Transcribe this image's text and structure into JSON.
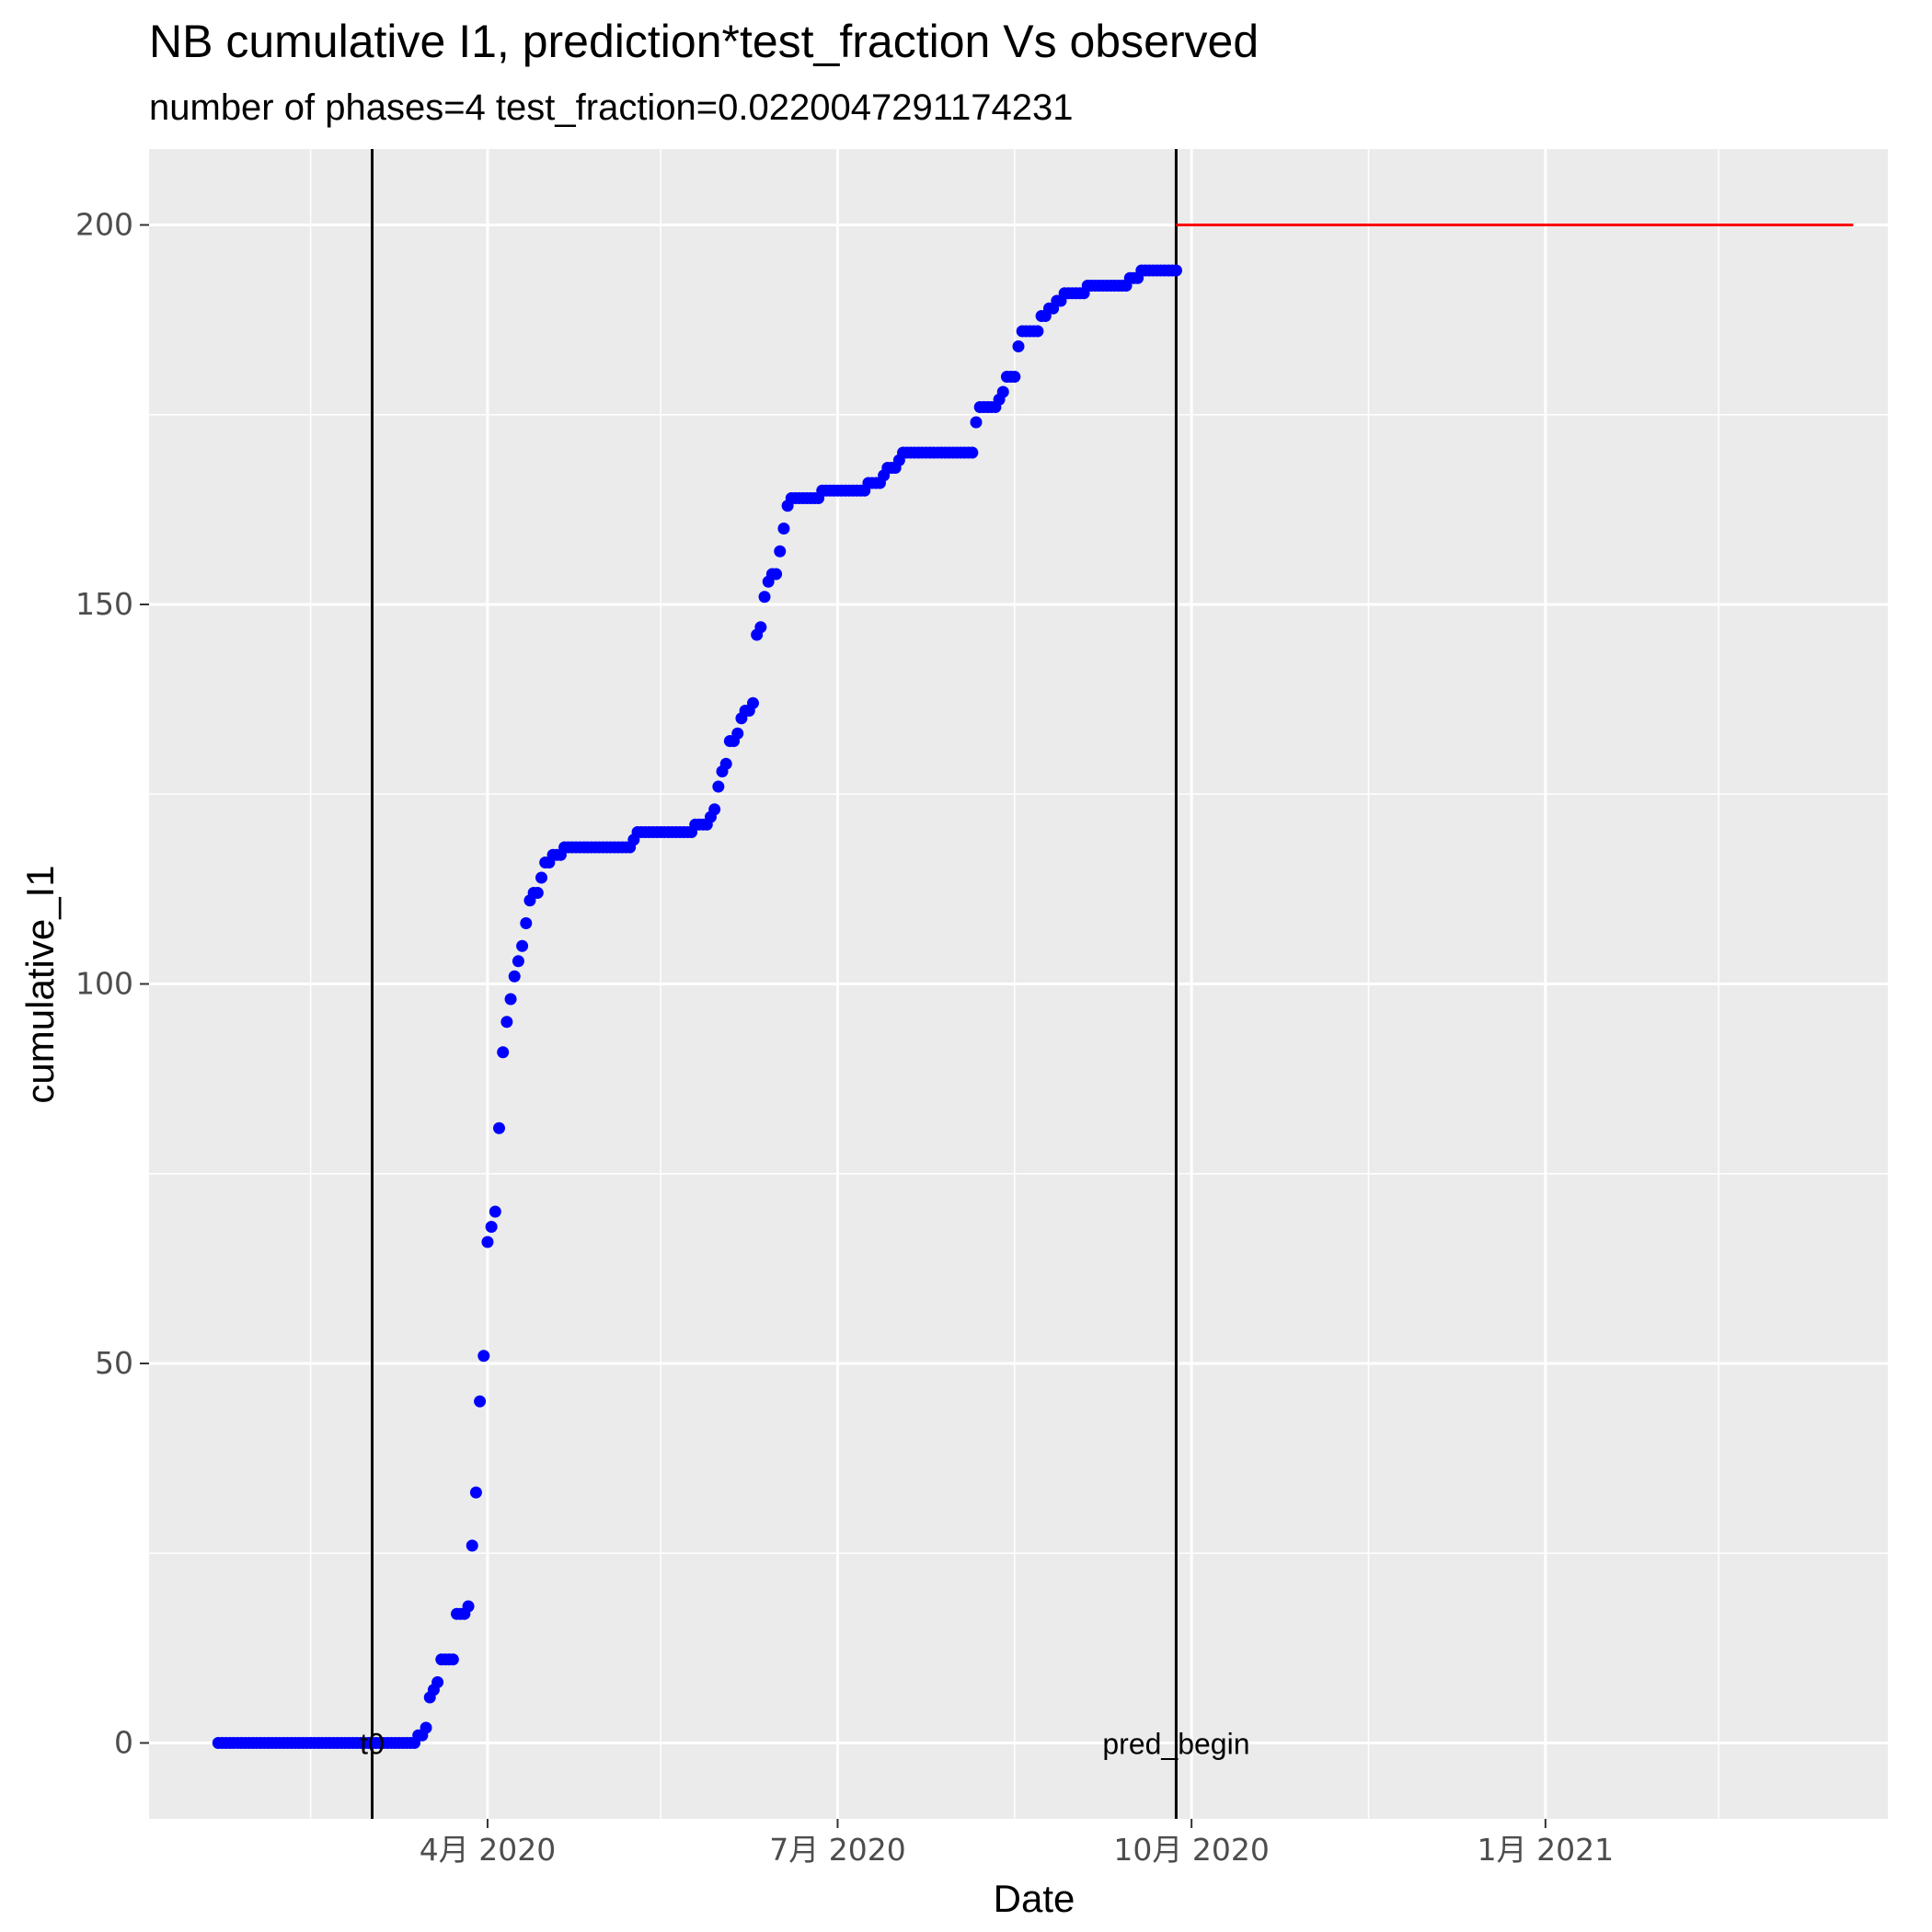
{
  "chart_data": {
    "type": "scatter",
    "title": "NB cumulative I1,  prediction*test_fraction Vs observed",
    "subtitle": "number of phases=4   test_fraction=0.0220047291174231",
    "xlabel": "Date",
    "ylabel": "cumulative_I1",
    "xlim": [
      "2020-01-04",
      "2021-03-31"
    ],
    "ylim": [
      -10,
      210
    ],
    "x_ticks": [
      {
        "date": "2020-04-01",
        "label": "4月 2020"
      },
      {
        "date": "2020-07-01",
        "label": "7月 2020"
      },
      {
        "date": "2020-10-01",
        "label": "10月 2020"
      },
      {
        "date": "2021-01-01",
        "label": "1月 2021"
      }
    ],
    "x_minor_ticks": [
      "2020-02-15",
      "2020-05-16",
      "2020-08-16",
      "2020-11-16",
      "2021-02-15"
    ],
    "y_ticks": [
      0,
      50,
      100,
      150,
      200
    ],
    "y_minor_ticks": [
      25,
      75,
      125,
      175
    ],
    "grid": true,
    "colors": {
      "observed": "#0000ff",
      "prediction": "#ff0000",
      "vlines": "#000000",
      "panel": "#ebebeb",
      "grid": "#ffffff"
    },
    "vlines": [
      {
        "date": "2020-03-02",
        "label": "t0"
      },
      {
        "date": "2020-09-27",
        "label": "pred_begin"
      }
    ],
    "series": [
      {
        "kind": "points",
        "color": "#0000ff",
        "points": [
          [
            "2020-01-22",
            0
          ],
          [
            "2020-03-13",
            0
          ],
          [
            "2020-03-14",
            1
          ],
          [
            "2020-03-15",
            1
          ],
          [
            "2020-03-16",
            2
          ],
          [
            "2020-03-17",
            6
          ],
          [
            "2020-03-18",
            7
          ],
          [
            "2020-03-19",
            8
          ],
          [
            "2020-03-20",
            11
          ],
          [
            "2020-03-21",
            11
          ],
          [
            "2020-03-22",
            11
          ],
          [
            "2020-03-23",
            11
          ],
          [
            "2020-03-24",
            17
          ],
          [
            "2020-03-25",
            17
          ],
          [
            "2020-03-26",
            17
          ],
          [
            "2020-03-27",
            18
          ],
          [
            "2020-03-28",
            26
          ],
          [
            "2020-03-29",
            33
          ],
          [
            "2020-03-30",
            45
          ],
          [
            "2020-03-31",
            51
          ],
          [
            "2020-04-01",
            66
          ],
          [
            "2020-04-02",
            68
          ],
          [
            "2020-04-03",
            70
          ],
          [
            "2020-04-04",
            81
          ],
          [
            "2020-04-05",
            91
          ],
          [
            "2020-04-06",
            95
          ],
          [
            "2020-04-07",
            98
          ],
          [
            "2020-04-08",
            101
          ],
          [
            "2020-04-09",
            103
          ],
          [
            "2020-04-10",
            105
          ],
          [
            "2020-04-11",
            108
          ],
          [
            "2020-04-12",
            111
          ],
          [
            "2020-04-13",
            112
          ],
          [
            "2020-04-14",
            112
          ],
          [
            "2020-04-15",
            114
          ],
          [
            "2020-04-16",
            116
          ],
          [
            "2020-04-17",
            116
          ],
          [
            "2020-04-18",
            117
          ],
          [
            "2020-04-19",
            117
          ],
          [
            "2020-04-20",
            117
          ],
          [
            "2020-04-21",
            118
          ],
          [
            "2020-05-08",
            118
          ],
          [
            "2020-05-09",
            119
          ],
          [
            "2020-05-10",
            120
          ],
          [
            "2020-05-24",
            120
          ],
          [
            "2020-05-25",
            121
          ],
          [
            "2020-05-28",
            121
          ],
          [
            "2020-05-29",
            122
          ],
          [
            "2020-05-30",
            123
          ],
          [
            "2020-05-31",
            126
          ],
          [
            "2020-06-01",
            128
          ],
          [
            "2020-06-02",
            129
          ],
          [
            "2020-06-03",
            132
          ],
          [
            "2020-06-04",
            132
          ],
          [
            "2020-06-05",
            133
          ],
          [
            "2020-06-06",
            135
          ],
          [
            "2020-06-07",
            136
          ],
          [
            "2020-06-08",
            136
          ],
          [
            "2020-06-09",
            137
          ],
          [
            "2020-06-10",
            146
          ],
          [
            "2020-06-11",
            147
          ],
          [
            "2020-06-12",
            151
          ],
          [
            "2020-06-13",
            153
          ],
          [
            "2020-06-14",
            154
          ],
          [
            "2020-06-15",
            154
          ],
          [
            "2020-06-16",
            157
          ],
          [
            "2020-06-17",
            160
          ],
          [
            "2020-06-18",
            163
          ],
          [
            "2020-06-19",
            164
          ],
          [
            "2020-06-26",
            164
          ],
          [
            "2020-06-27",
            165
          ],
          [
            "2020-07-08",
            165
          ],
          [
            "2020-07-09",
            166
          ],
          [
            "2020-07-12",
            166
          ],
          [
            "2020-07-13",
            167
          ],
          [
            "2020-07-14",
            168
          ],
          [
            "2020-07-15",
            168
          ],
          [
            "2020-07-16",
            168
          ],
          [
            "2020-07-17",
            169
          ],
          [
            "2020-07-18",
            170
          ],
          [
            "2020-08-05",
            170
          ],
          [
            "2020-08-06",
            174
          ],
          [
            "2020-08-07",
            176
          ],
          [
            "2020-08-11",
            176
          ],
          [
            "2020-08-12",
            177
          ],
          [
            "2020-08-13",
            178
          ],
          [
            "2020-08-14",
            180
          ],
          [
            "2020-08-15",
            180
          ],
          [
            "2020-08-16",
            180
          ],
          [
            "2020-08-17",
            184
          ],
          [
            "2020-08-18",
            186
          ],
          [
            "2020-08-22",
            186
          ],
          [
            "2020-08-23",
            188
          ],
          [
            "2020-08-24",
            188
          ],
          [
            "2020-08-25",
            189
          ],
          [
            "2020-08-26",
            189
          ],
          [
            "2020-08-27",
            190
          ],
          [
            "2020-08-28",
            190
          ],
          [
            "2020-08-29",
            191
          ],
          [
            "2020-09-03",
            191
          ],
          [
            "2020-09-04",
            192
          ],
          [
            "2020-09-14",
            192
          ],
          [
            "2020-09-15",
            193
          ],
          [
            "2020-09-17",
            193
          ],
          [
            "2020-09-18",
            194
          ],
          [
            "2020-09-27",
            194
          ]
        ]
      },
      {
        "kind": "line",
        "color": "#ff0000",
        "points": [
          [
            "2020-09-27",
            200
          ],
          [
            "2021-03-22",
            200
          ]
        ]
      }
    ]
  }
}
